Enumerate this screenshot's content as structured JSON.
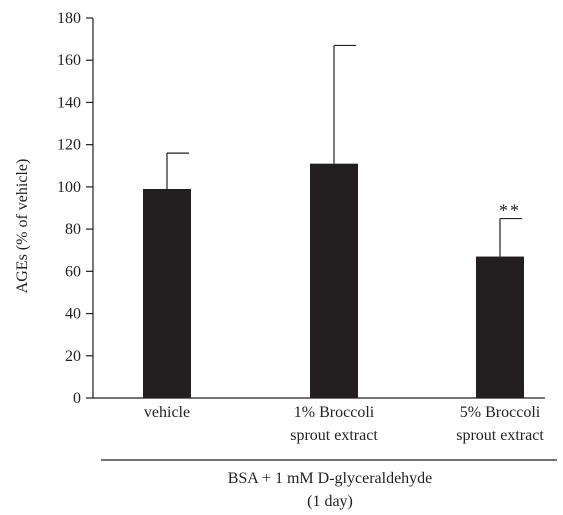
{
  "chart_data": {
    "type": "bar",
    "ylabel": "AGEs (% of vehicle)",
    "ylim": [
      0,
      180
    ],
    "yticks": [
      0,
      20,
      40,
      60,
      80,
      100,
      120,
      140,
      160,
      180
    ],
    "categories": [
      [
        "vehicle"
      ],
      [
        "1% Broccoli",
        "sprout extract"
      ],
      [
        "5% Broccoli",
        "sprout extract"
      ]
    ],
    "values": [
      99,
      111,
      67
    ],
    "errors": [
      17,
      56,
      18
    ],
    "significance": [
      "",
      "",
      "**"
    ],
    "group_label": [
      "BSA + 1 mM D-glyceraldehyde",
      "(1 day)"
    ],
    "bar_color": "#231f20",
    "grid": false,
    "legend": "none"
  }
}
